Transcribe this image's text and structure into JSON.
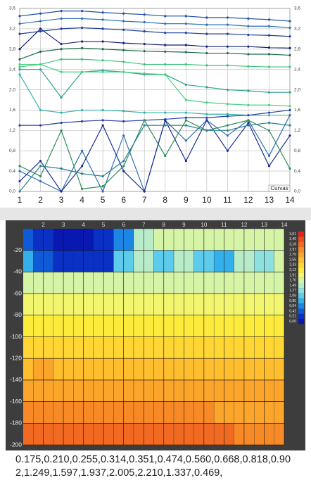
{
  "chart_data": [
    {
      "type": "line",
      "legend_label": "Curvas",
      "grid": true,
      "x": [
        1,
        2,
        3,
        4,
        5,
        6,
        7,
        8,
        9,
        10,
        11,
        12,
        13,
        14
      ],
      "xlim": [
        1,
        14
      ],
      "xticks": [
        1,
        2,
        3,
        4,
        5,
        6,
        7,
        8,
        9,
        10,
        11,
        12,
        13,
        14
      ],
      "ylim": [
        0,
        3.6
      ],
      "yticks": [
        {
          "value": 0,
          "label": "0,0"
        },
        {
          "value": 0.4,
          "label": "0,4"
        },
        {
          "value": 0.8,
          "label": "0,8"
        },
        {
          "value": 1.2,
          "label": "1,2"
        },
        {
          "value": 1.6,
          "label": "1,6"
        },
        {
          "value": 2.0,
          "label": "2,0"
        },
        {
          "value": 2.4,
          "label": "2,4"
        },
        {
          "value": 2.8,
          "label": "2,8"
        },
        {
          "value": 3.2,
          "label": "3,2"
        },
        {
          "value": 3.6,
          "label": "3,6"
        }
      ],
      "y2lim": [
        0,
        3.6
      ],
      "y2ticks": [
        {
          "value": 0,
          "label": "0,0"
        },
        {
          "value": 0.4,
          "label": "0,4"
        },
        {
          "value": 0.8,
          "label": "0,8"
        },
        {
          "value": 1.2,
          "label": "1,2"
        },
        {
          "value": 1.6,
          "label": "1,6"
        },
        {
          "value": 2.0,
          "label": "2,0"
        },
        {
          "value": 2.4,
          "label": "2,4"
        },
        {
          "value": 2.8,
          "label": "2,8"
        },
        {
          "value": 3.2,
          "label": "3,2"
        },
        {
          "value": 3.6,
          "label": "3,6"
        }
      ],
      "series": [
        {
          "color": "#1f4fa8",
          "values": [
            3.45,
            3.5,
            3.55,
            3.55,
            3.52,
            3.5,
            3.48,
            3.45,
            3.45,
            3.42,
            3.42,
            3.4,
            3.38,
            3.35
          ]
        },
        {
          "color": "#2a6fb8",
          "values": [
            3.3,
            3.35,
            3.4,
            3.4,
            3.38,
            3.35,
            3.33,
            3.3,
            3.3,
            3.28,
            3.28,
            3.25,
            3.25,
            3.22
          ]
        },
        {
          "color": "#1d3f9a",
          "values": [
            3.1,
            3.15,
            3.2,
            3.22,
            3.2,
            3.18,
            3.15,
            3.12,
            3.12,
            3.1,
            3.1,
            3.08,
            3.07,
            3.05
          ]
        },
        {
          "color": "#15207a",
          "values": [
            2.8,
            3.2,
            2.9,
            2.95,
            2.95,
            2.92,
            2.9,
            2.88,
            2.88,
            2.85,
            2.85,
            2.85,
            2.83,
            2.82
          ]
        },
        {
          "color": "#1e6b4a",
          "values": [
            2.6,
            2.75,
            2.8,
            2.82,
            2.8,
            2.78,
            2.76,
            2.75,
            2.74,
            2.72,
            2.72,
            2.7,
            2.7,
            2.68
          ]
        },
        {
          "color": "#3cc47a",
          "values": [
            2.45,
            2.5,
            2.6,
            2.6,
            2.58,
            2.55,
            2.5,
            2.5,
            2.5,
            2.48,
            2.48,
            2.46,
            2.45,
            2.45
          ]
        },
        {
          "color": "#2aa08a",
          "values": [
            2.4,
            2.4,
            1.85,
            2.35,
            2.38,
            2.35,
            2.3,
            2.3,
            2.1,
            2.05,
            2.0,
            1.98,
            1.95,
            1.95
          ]
        },
        {
          "color": "#30b4a8",
          "values": [
            2.3,
            1.6,
            1.55,
            1.6,
            1.6,
            1.58,
            1.55,
            1.55,
            1.55,
            1.52,
            1.52,
            1.5,
            1.5,
            1.5
          ]
        },
        {
          "color": "#48d080",
          "values": [
            2.5,
            2.5,
            2.35,
            2.35,
            2.35,
            2.35,
            2.32,
            2.3,
            1.8,
            1.75,
            1.72,
            1.7,
            1.7,
            1.68
          ]
        },
        {
          "color": "#2a3fa0",
          "values": [
            1.3,
            1.3,
            1.35,
            1.38,
            1.4,
            1.38,
            1.4,
            1.42,
            1.45,
            1.45,
            1.48,
            1.5,
            1.55,
            1.6
          ]
        },
        {
          "color": "#2f6fb0",
          "values": [
            0.4,
            0.2,
            0,
            0.8,
            0,
            1.1,
            0,
            1.4,
            1.0,
            1.4,
            1.1,
            1.4,
            0.7,
            1.5
          ]
        },
        {
          "color": "#1c2f8f",
          "values": [
            0.2,
            0.6,
            0,
            0.5,
            1.3,
            0.4,
            0,
            1.4,
            0.6,
            1.4,
            0.8,
            1.35,
            0.5,
            1.1
          ]
        },
        {
          "color": "#2e8b57",
          "values": [
            0.5,
            0.3,
            1.2,
            0.05,
            0.1,
            0.5,
            1.4,
            0.7,
            1.4,
            1.2,
            1.3,
            1.4,
            1.2,
            0.45
          ]
        },
        {
          "color": "#2a7f8f",
          "values": [
            0,
            0.5,
            0.45,
            0.35,
            0.3,
            0.6,
            1.3,
            1.3,
            1.3,
            1.2,
            1.2,
            1.3,
            1.35,
            1.3
          ]
        }
      ]
    },
    {
      "type": "heatmap",
      "x": [
        1,
        2,
        3,
        4,
        5,
        6,
        7,
        8,
        9,
        10,
        11,
        12,
        13,
        14
      ],
      "depth": [
        -10,
        -30,
        -50,
        -70,
        -90,
        -110,
        -130,
        -150,
        -170,
        -190
      ],
      "xlim": [
        1,
        14
      ],
      "xticks": [
        2,
        3,
        4,
        5,
        6,
        7,
        8,
        9,
        10,
        11,
        12,
        13,
        14
      ],
      "ylim": [
        -200,
        0
      ],
      "yticks": [
        -20,
        -40,
        -60,
        -80,
        -100,
        -120,
        -140,
        -160,
        -180,
        -200
      ],
      "z": [
        [
          0.6,
          0.3,
          0.2,
          0.2,
          0.3,
          0.8,
          1.6,
          1.7,
          1.7,
          1.7,
          1.7,
          1.8,
          1.7,
          1.8
        ],
        [
          1.0,
          0.5,
          0.3,
          0.3,
          0.4,
          1.1,
          1.5,
          1.1,
          1.6,
          1.2,
          1.0,
          1.6,
          1.3,
          1.7
        ],
        [
          1.8,
          1.9,
          1.9,
          1.9,
          1.9,
          1.9,
          1.8,
          1.8,
          1.8,
          1.8,
          1.8,
          1.9,
          1.9,
          1.9
        ],
        [
          2.1,
          2.1,
          2.1,
          2.1,
          2.1,
          2.1,
          2.1,
          2.0,
          2.0,
          2.0,
          2.0,
          2.1,
          2.1,
          2.1
        ],
        [
          2.3,
          2.3,
          2.3,
          2.3,
          2.3,
          2.3,
          2.3,
          2.3,
          2.2,
          2.2,
          2.2,
          2.3,
          2.3,
          2.3
        ],
        [
          2.5,
          2.5,
          2.5,
          2.5,
          2.5,
          2.5,
          2.5,
          2.4,
          2.4,
          2.4,
          2.4,
          2.4,
          2.4,
          2.4
        ],
        [
          2.6,
          2.8,
          2.6,
          2.6,
          2.6,
          2.6,
          2.6,
          2.6,
          2.6,
          2.6,
          2.6,
          2.6,
          2.6,
          2.6
        ],
        [
          2.8,
          2.8,
          2.8,
          2.8,
          2.8,
          2.8,
          2.8,
          2.8,
          2.8,
          2.8,
          2.8,
          2.8,
          2.8,
          2.8
        ],
        [
          3.0,
          3.0,
          3.0,
          3.0,
          3.0,
          3.0,
          3.0,
          3.0,
          3.0,
          3.0,
          2.9,
          2.9,
          2.9,
          2.9
        ],
        [
          3.3,
          3.3,
          3.3,
          3.3,
          3.3,
          3.3,
          3.2,
          3.2,
          3.2,
          3.2,
          3.2,
          3.1,
          3.1,
          3.1
        ]
      ],
      "levels": [
        {
          "value": 3.61,
          "label": "3,61",
          "color": "#e8231c"
        },
        {
          "value": 3.4,
          "label": "3,40",
          "color": "#ee4a1e"
        },
        {
          "value": 3.18,
          "label": "3,18",
          "color": "#f26a22"
        },
        {
          "value": 2.97,
          "label": "2,97",
          "color": "#f78a26"
        },
        {
          "value": 2.76,
          "label": "2,76",
          "color": "#fba52a"
        },
        {
          "value": 2.55,
          "label": "2,55",
          "color": "#ffbe2e"
        },
        {
          "value": 2.33,
          "label": "2,33",
          "color": "#ffd634"
        },
        {
          "value": 2.12,
          "label": "2,12",
          "color": "#fdeb3c"
        },
        {
          "value": 1.91,
          "label": "1,91",
          "color": "#f2f66e"
        },
        {
          "value": 1.7,
          "label": "1,70",
          "color": "#d6f4a6"
        },
        {
          "value": 1.49,
          "label": "1,49",
          "color": "#b8ecc8"
        },
        {
          "value": 1.27,
          "label": "1,27",
          "color": "#8ee0e0"
        },
        {
          "value": 1.06,
          "label": "1,06",
          "color": "#5ccbec"
        },
        {
          "value": 0.85,
          "label": "0,85",
          "color": "#33b0ec"
        },
        {
          "value": 0.64,
          "label": "0,64",
          "color": "#1c86e4"
        },
        {
          "value": 0.42,
          "label": "0,42",
          "color": "#0f5ad6"
        },
        {
          "value": 0.21,
          "label": "0,21",
          "color": "#0a30c4"
        },
        {
          "value": 0.0,
          "label": "0,00",
          "color": "#0818b0"
        }
      ]
    }
  ],
  "readout": "0.175,0.210,0.255,0.314,0.351,0.474,0.560,0.668,0.818,0.902,1.249,1.597,1.937,2.005,2.210,1.337,0.469,"
}
